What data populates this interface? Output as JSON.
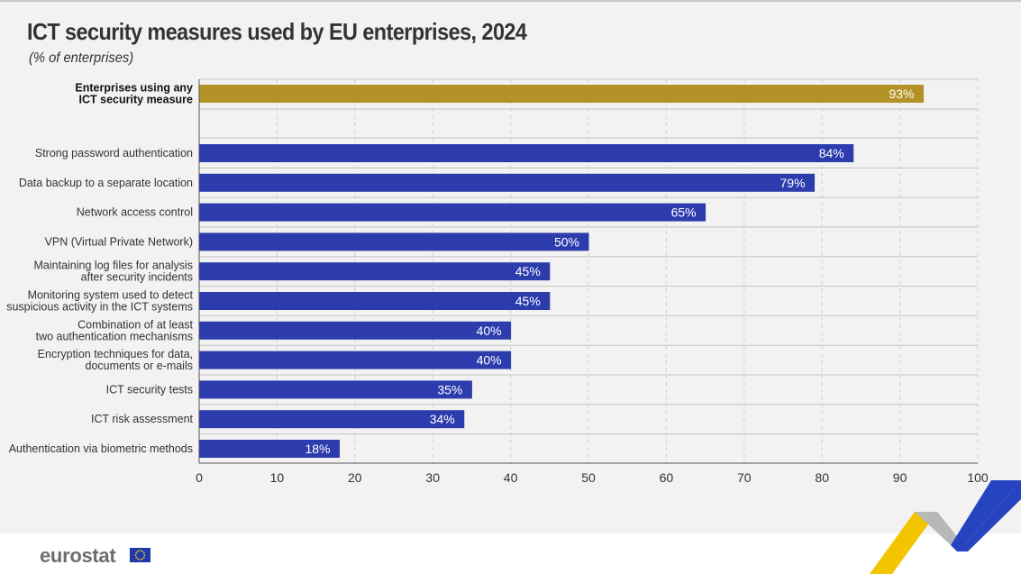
{
  "header": {
    "title": "ICT security measures used by EU enterprises, 2024",
    "subtitle": "(% of enterprises)"
  },
  "footer": {
    "logo_text": "eurostat",
    "flag_icon": "eu-flag-icon",
    "decoration_icon": "eurostat-chevron-decoration"
  },
  "colors": {
    "highlight_bar": "#b39227",
    "bar": "#2d3cad",
    "bar_label": "#ffffff",
    "gridline": "#d0d0d0",
    "text": "#333333",
    "deco_blue": "#2644c0",
    "deco_yellow": "#f2c500",
    "deco_grey": "#b8b8b8"
  },
  "chart_data": {
    "type": "bar",
    "orientation": "horizontal",
    "title": "ICT security measures used by EU enterprises, 2024",
    "subtitle": "(% of enterprises)",
    "xlabel": "",
    "ylabel": "",
    "xlim": [
      0,
      100
    ],
    "xticks": [
      0,
      10,
      20,
      30,
      40,
      50,
      60,
      70,
      80,
      90,
      100
    ],
    "grid": true,
    "legend": "none",
    "value_suffix": "%",
    "categories": [
      "Enterprises using any\nICT security measure",
      "Strong password authentication",
      "Data backup to a separate location",
      "Network access control",
      "VPN (Virtual Private Network)",
      "Maintaining log files for analysis\nafter security incidents",
      "Monitoring system used to detect\nsuspicious activity in the ICT systems",
      "Combination of at least\ntwo authentication mechanisms",
      "Encryption techniques for data,\ndocuments or e-mails",
      "ICT security tests",
      "ICT risk assessment",
      "Authentication via biometric methods"
    ],
    "values": [
      93,
      84,
      79,
      65,
      50,
      45,
      45,
      40,
      40,
      35,
      34,
      18
    ],
    "labels": [
      "93%",
      "84%",
      "79%",
      "65%",
      "50%",
      "45%",
      "45%",
      "40%",
      "40%",
      "35%",
      "34%",
      "18%"
    ],
    "highlighted_category": "Enterprises using any\nICT security measure"
  }
}
